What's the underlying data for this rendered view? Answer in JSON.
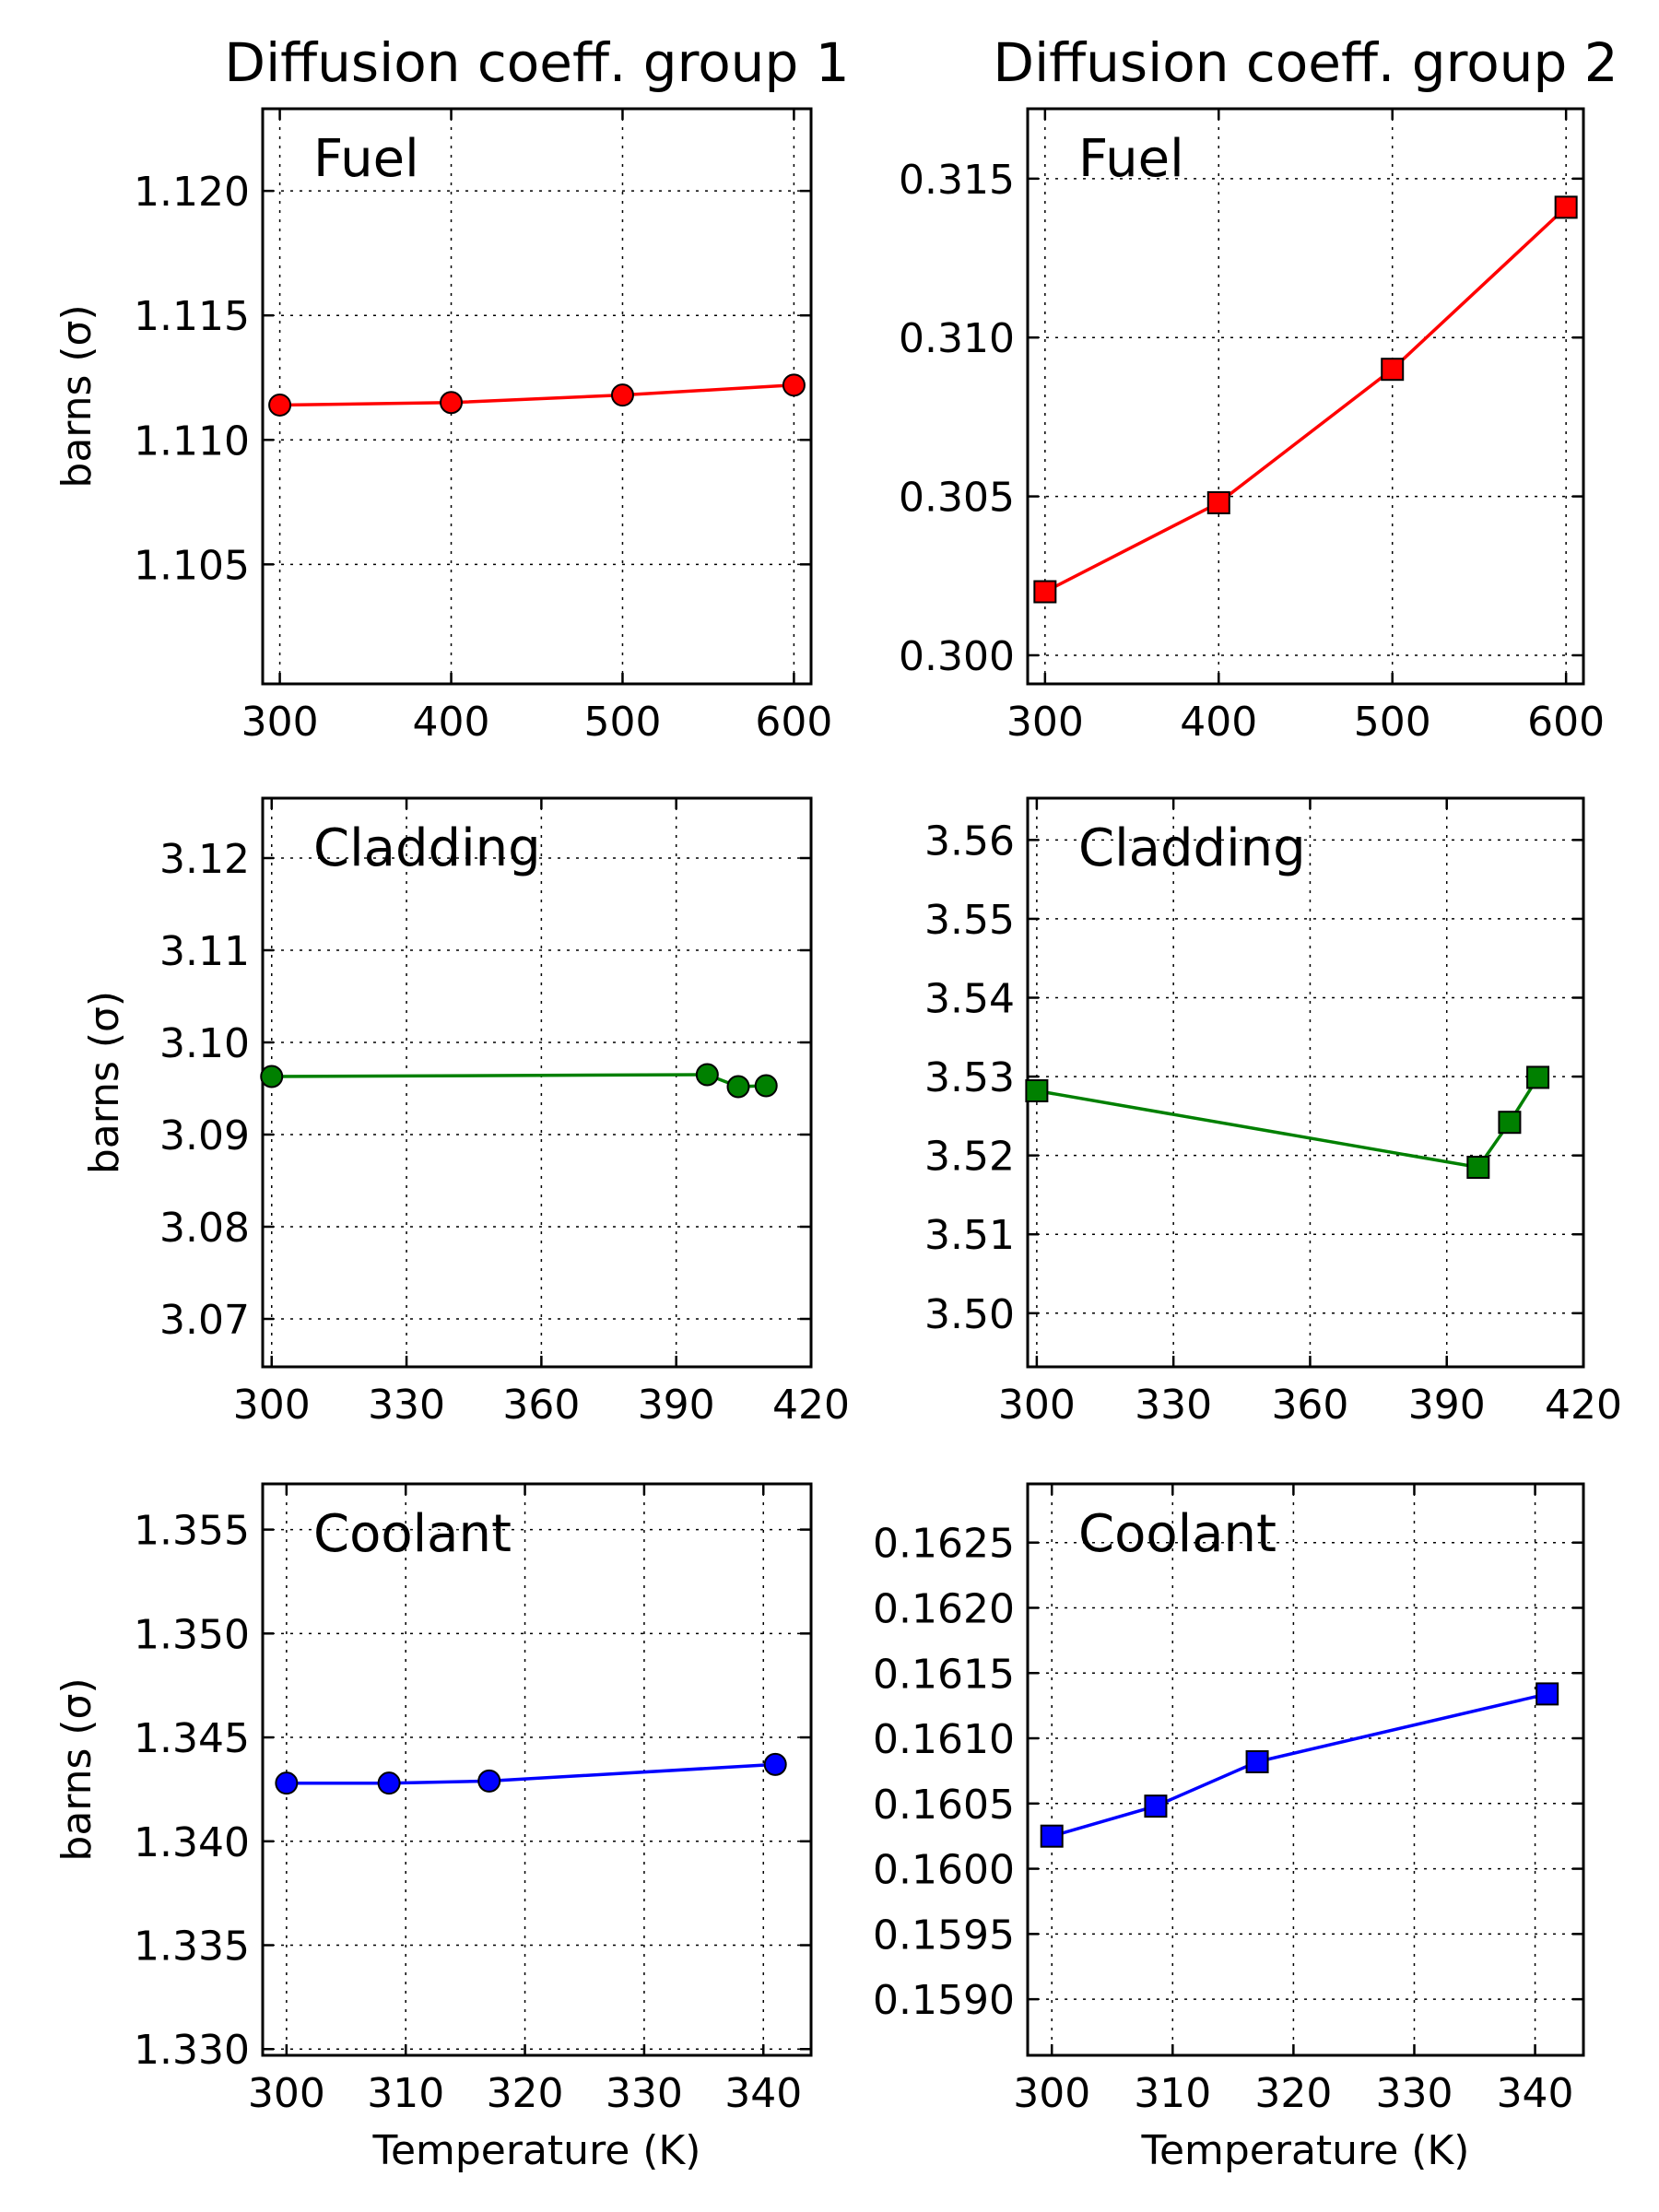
{
  "column_titles": [
    "Diffusion coeff. group 1",
    "Diffusion coeff. group 2"
  ],
  "ylabel": "barns (σ)",
  "xlabel": "Temperature (K)",
  "chart_data": [
    {
      "type": "line",
      "title": "Diffusion coeff. group 1",
      "annotation": "Fuel",
      "color": "#ff0000",
      "marker": "circle",
      "x": [
        300,
        400,
        500,
        600
      ],
      "y": [
        1.1114,
        1.1115,
        1.1118,
        1.1122
      ],
      "xlim": [
        290,
        610
      ],
      "ylim": [
        1.1002,
        1.1233
      ],
      "xticks": [
        300,
        400,
        500,
        600
      ],
      "xtick_labels": [
        "300",
        "400",
        "500",
        "600"
      ],
      "yticks": [
        1.105,
        1.11,
        1.115,
        1.12
      ],
      "ytick_labels": [
        "1.105",
        "1.110",
        "1.115",
        "1.120"
      ],
      "ylabel": "barns (σ)",
      "xlabel": "",
      "grid": true
    },
    {
      "type": "line",
      "title": "Diffusion coeff. group 2",
      "annotation": "Fuel",
      "color": "#ff0000",
      "marker": "square",
      "x": [
        300,
        400,
        500,
        600
      ],
      "y": [
        0.302,
        0.3048,
        0.309,
        0.3141
      ],
      "xlim": [
        290,
        610
      ],
      "ylim": [
        0.2991,
        0.3172
      ],
      "xticks": [
        300,
        400,
        500,
        600
      ],
      "xtick_labels": [
        "300",
        "400",
        "500",
        "600"
      ],
      "yticks": [
        0.3,
        0.305,
        0.31,
        0.315
      ],
      "ytick_labels": [
        "0.300",
        "0.305",
        "0.310",
        "0.315"
      ],
      "ylabel": "",
      "xlabel": "",
      "grid": true
    },
    {
      "type": "line",
      "title": "",
      "annotation": "Cladding",
      "color": "#008000",
      "marker": "circle",
      "x": [
        300,
        396.9,
        403.8,
        410
      ],
      "y": [
        3.0963,
        3.0965,
        3.0952,
        3.0953
      ],
      "xlim": [
        298,
        420
      ],
      "ylim": [
        3.0648,
        3.1265
      ],
      "xticks": [
        300,
        330,
        360,
        390,
        420
      ],
      "xtick_labels": [
        "300",
        "330",
        "360",
        "390",
        "420"
      ],
      "yticks": [
        3.07,
        3.08,
        3.09,
        3.1,
        3.11,
        3.12
      ],
      "ytick_labels": [
        "3.07",
        "3.08",
        "3.09",
        "3.10",
        "3.11",
        "3.12"
      ],
      "ylabel": "barns (σ)",
      "xlabel": "",
      "grid": true
    },
    {
      "type": "line",
      "title": "",
      "annotation": "Cladding",
      "color": "#008000",
      "marker": "square",
      "x": [
        300,
        396.9,
        403.8,
        410
      ],
      "y": [
        3.5282,
        3.5185,
        3.5242,
        3.5299
      ],
      "xlim": [
        298,
        420
      ],
      "ylim": [
        3.4932,
        3.5653
      ],
      "xticks": [
        300,
        330,
        360,
        390,
        420
      ],
      "xtick_labels": [
        "300",
        "330",
        "360",
        "390",
        "420"
      ],
      "yticks": [
        3.5,
        3.51,
        3.52,
        3.53,
        3.54,
        3.55,
        3.56
      ],
      "ytick_labels": [
        "3.50",
        "3.51",
        "3.52",
        "3.53",
        "3.54",
        "3.55",
        "3.56"
      ],
      "ylabel": "",
      "xlabel": "",
      "grid": true
    },
    {
      "type": "line",
      "title": "",
      "annotation": "Coolant",
      "color": "#0000ff",
      "marker": "circle",
      "x": [
        300,
        308.6,
        317,
        341
      ],
      "y": [
        1.3428,
        1.3428,
        1.3429,
        1.3437
      ],
      "xlim": [
        298,
        344
      ],
      "ylim": [
        1.3297,
        1.3572
      ],
      "xticks": [
        300,
        310,
        320,
        330,
        340
      ],
      "xtick_labels": [
        "300",
        "310",
        "320",
        "330",
        "340"
      ],
      "yticks": [
        1.33,
        1.335,
        1.34,
        1.345,
        1.35,
        1.355
      ],
      "ytick_labels": [
        "1.330",
        "1.335",
        "1.340",
        "1.345",
        "1.350",
        "1.355"
      ],
      "ylabel": "barns (σ)",
      "xlabel": "Temperature (K)",
      "grid": true
    },
    {
      "type": "line",
      "title": "",
      "annotation": "Coolant",
      "color": "#0000ff",
      "marker": "square",
      "x": [
        300,
        308.6,
        317,
        341
      ],
      "y": [
        0.16025,
        0.16048,
        0.16082,
        0.16134
      ],
      "xlim": [
        298,
        344
      ],
      "ylim": [
        0.15857,
        0.16295
      ],
      "xticks": [
        300,
        310,
        320,
        330,
        340
      ],
      "xtick_labels": [
        "300",
        "310",
        "320",
        "330",
        "340"
      ],
      "yticks": [
        0.159,
        0.1595,
        0.16,
        0.1605,
        0.161,
        0.1615,
        0.162,
        0.1625
      ],
      "ytick_labels": [
        "0.1590",
        "0.1595",
        "0.1600",
        "0.1605",
        "0.1610",
        "0.1615",
        "0.1620",
        "0.1625"
      ],
      "ylabel": "",
      "xlabel": "Temperature (K)",
      "grid": true
    }
  ]
}
